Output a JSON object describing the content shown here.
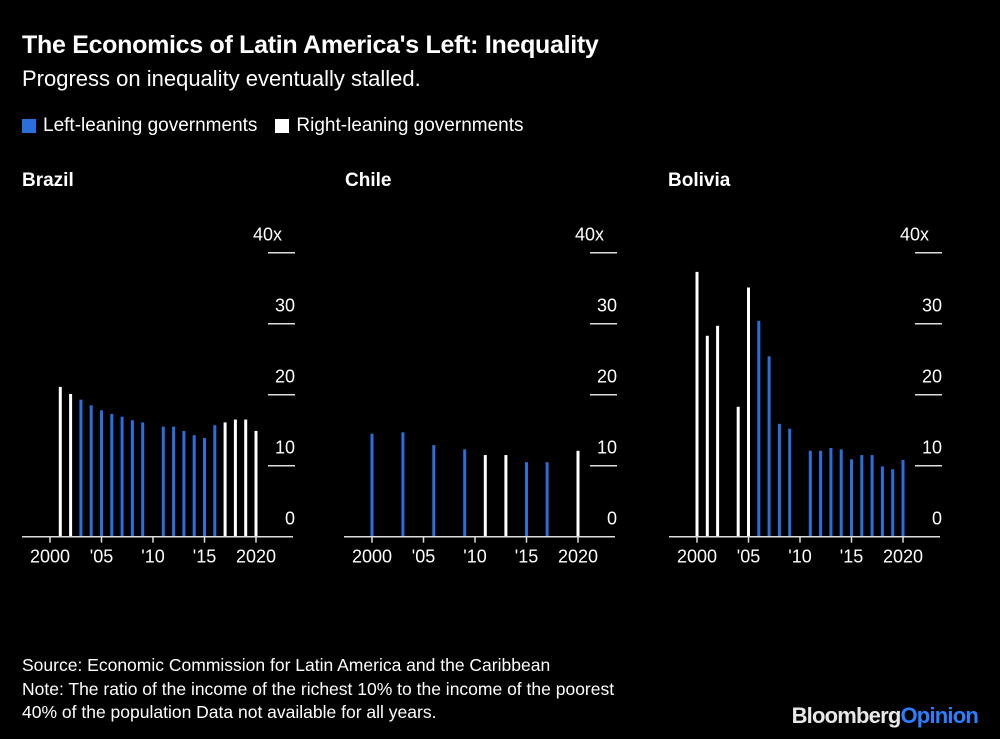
{
  "title": "The Economics of Latin America's Left: Inequality",
  "subtitle": "Progress on inequality eventually stalled.",
  "footer": {
    "source": "Source: Economic Commission for Latin America and the Caribbean",
    "note_line1": "Note: The ratio of the income of the richest 10% to the income of the poorest",
    "note_line2": "40% of the population Data not available for all years."
  },
  "logo": {
    "part1": "Bloomberg",
    "part2": "Opinion"
  },
  "colors": {
    "left": "#2a6fdb",
    "right": "#ffffff",
    "background": "#000000",
    "logo_accent": "#2a7fff"
  },
  "chart_data": {
    "type": "bar",
    "legend": [
      {
        "name": "Left-leaning governments",
        "color": "#2a6fdb"
      },
      {
        "name": "Right-leaning governments",
        "color": "#ffffff"
      }
    ],
    "legend_placement": "top-left",
    "ylim": [
      0,
      40
    ],
    "y_ticks": [
      "0",
      "10",
      "20",
      "30",
      "40x"
    ],
    "x_ticks": [
      "2000",
      "'05",
      "'10",
      "'15",
      "2020"
    ],
    "xlim": [
      2000,
      2020
    ],
    "grid": false,
    "panels": [
      {
        "title": "Brazil",
        "bars": [
          {
            "x": 2001,
            "y": 21.1,
            "gov": "right"
          },
          {
            "x": 2002,
            "y": 20.1,
            "gov": "right"
          },
          {
            "x": 2003,
            "y": 19.3,
            "gov": "left"
          },
          {
            "x": 2004,
            "y": 18.5,
            "gov": "left"
          },
          {
            "x": 2005,
            "y": 17.8,
            "gov": "left"
          },
          {
            "x": 2006,
            "y": 17.3,
            "gov": "left"
          },
          {
            "x": 2007,
            "y": 16.9,
            "gov": "left"
          },
          {
            "x": 2008,
            "y": 16.4,
            "gov": "left"
          },
          {
            "x": 2009,
            "y": 16.1,
            "gov": "left"
          },
          {
            "x": 2011,
            "y": 15.5,
            "gov": "left"
          },
          {
            "x": 2012,
            "y": 15.5,
            "gov": "left"
          },
          {
            "x": 2013,
            "y": 14.9,
            "gov": "left"
          },
          {
            "x": 2014,
            "y": 14.3,
            "gov": "left"
          },
          {
            "x": 2015,
            "y": 13.9,
            "gov": "left"
          },
          {
            "x": 2016,
            "y": 15.7,
            "gov": "left"
          },
          {
            "x": 2017,
            "y": 16.1,
            "gov": "right"
          },
          {
            "x": 2018,
            "y": 16.5,
            "gov": "right"
          },
          {
            "x": 2019,
            "y": 16.5,
            "gov": "right"
          },
          {
            "x": 2020,
            "y": 14.9,
            "gov": "right"
          }
        ]
      },
      {
        "title": "Chile",
        "bars": [
          {
            "x": 2000,
            "y": 14.5,
            "gov": "left"
          },
          {
            "x": 2003,
            "y": 14.7,
            "gov": "left"
          },
          {
            "x": 2006,
            "y": 12.9,
            "gov": "left"
          },
          {
            "x": 2009,
            "y": 12.3,
            "gov": "left"
          },
          {
            "x": 2011,
            "y": 11.5,
            "gov": "right"
          },
          {
            "x": 2013,
            "y": 11.5,
            "gov": "right"
          },
          {
            "x": 2015,
            "y": 10.5,
            "gov": "left"
          },
          {
            "x": 2017,
            "y": 10.5,
            "gov": "left"
          },
          {
            "x": 2020,
            "y": 12.1,
            "gov": "right"
          }
        ]
      },
      {
        "title": "Bolivia",
        "bars": [
          {
            "x": 2000,
            "y": 37.3,
            "gov": "right"
          },
          {
            "x": 2001,
            "y": 28.3,
            "gov": "right"
          },
          {
            "x": 2002,
            "y": 29.7,
            "gov": "right"
          },
          {
            "x": 2004,
            "y": 18.3,
            "gov": "right"
          },
          {
            "x": 2005,
            "y": 35.1,
            "gov": "right"
          },
          {
            "x": 2006,
            "y": 30.4,
            "gov": "left"
          },
          {
            "x": 2007,
            "y": 25.4,
            "gov": "left"
          },
          {
            "x": 2008,
            "y": 15.9,
            "gov": "left"
          },
          {
            "x": 2009,
            "y": 15.2,
            "gov": "left"
          },
          {
            "x": 2011,
            "y": 12.1,
            "gov": "left"
          },
          {
            "x": 2012,
            "y": 12.1,
            "gov": "left"
          },
          {
            "x": 2013,
            "y": 12.5,
            "gov": "left"
          },
          {
            "x": 2014,
            "y": 12.3,
            "gov": "left"
          },
          {
            "x": 2015,
            "y": 10.9,
            "gov": "left"
          },
          {
            "x": 2016,
            "y": 11.5,
            "gov": "left"
          },
          {
            "x": 2017,
            "y": 11.5,
            "gov": "left"
          },
          {
            "x": 2018,
            "y": 9.9,
            "gov": "left"
          },
          {
            "x": 2019,
            "y": 9.5,
            "gov": "left"
          },
          {
            "x": 2020,
            "y": 10.8,
            "gov": "left"
          }
        ]
      }
    ]
  }
}
